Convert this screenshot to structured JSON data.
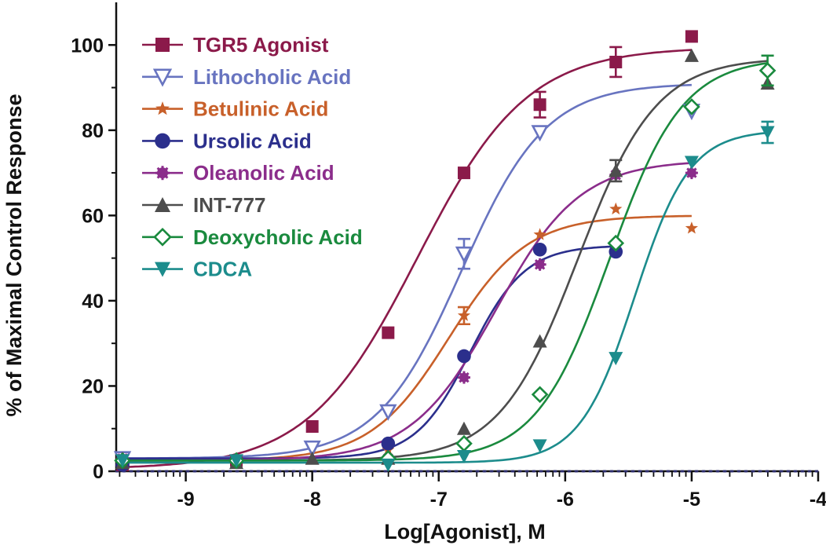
{
  "chart_data": {
    "type": "scatter",
    "xlabel": "Log[Agonist], M",
    "ylabel": "% of Maximal Control Response",
    "xlim": [
      -9.55,
      -4
    ],
    "ylim": [
      0,
      110
    ],
    "xticks": [
      -9,
      -8,
      -7,
      -6,
      -5,
      -4
    ],
    "xtick_labels": [
      "-9",
      "-8",
      "-7",
      "-6",
      "-5",
      "-4"
    ],
    "yticks": [
      0,
      20,
      40,
      60,
      80,
      100
    ],
    "ytick_labels": [
      "0",
      "20",
      "40",
      "60",
      "80",
      "100"
    ],
    "baseline": 0,
    "grid": false,
    "legend_position": "top-left",
    "series": [
      {
        "name": "TGR5 Agonist",
        "color": "#8b1a4a",
        "marker": "square",
        "x": [
          -9.5,
          -8.6,
          -8.0,
          -7.4,
          -6.8,
          -6.2,
          -5.6,
          -5.0
        ],
        "y": [
          1.5,
          2.5,
          10.5,
          32.5,
          70,
          86,
          96,
          102
        ],
        "err": [
          0,
          0,
          0,
          0,
          0,
          3,
          3.5,
          0
        ],
        "fit": {
          "bottom": 0.5,
          "top": 99.5,
          "logec50": -7.17,
          "hill": 1.0,
          "xmin": -9.5,
          "xmax": -5.0
        }
      },
      {
        "name": "Lithocholic Acid",
        "color": "#6874c0",
        "marker": "triangle-down-open",
        "x": [
          -9.5,
          -8.0,
          -7.4,
          -6.8,
          -6.2,
          -5.0
        ],
        "y": [
          3,
          5.5,
          14,
          51,
          79.5,
          84.5
        ],
        "err": [
          0,
          0,
          0,
          3.5,
          0,
          0
        ],
        "fit": {
          "bottom": 3,
          "top": 91,
          "logec50": -6.82,
          "hill": 1.3,
          "xmin": -9.5,
          "xmax": -5.0
        }
      },
      {
        "name": "Betulinic Acid",
        "color": "#c8602a",
        "marker": "star",
        "x": [
          -9.5,
          -8.6,
          -7.4,
          -6.8,
          -6.2,
          -5.6,
          -5.0
        ],
        "y": [
          2.5,
          2.5,
          5,
          36.5,
          55.5,
          61.5,
          57
        ],
        "err": [
          0,
          0,
          0,
          2,
          0,
          0,
          0
        ],
        "fit": {
          "bottom": 2.5,
          "top": 60,
          "logec50": -6.92,
          "hill": 1.4,
          "xmin": -9.5,
          "xmax": -5.0
        }
      },
      {
        "name": "Ursolic Acid",
        "color": "#2b2f8c",
        "marker": "circle",
        "x": [
          -9.5,
          -7.4,
          -6.8,
          -6.2,
          -5.6
        ],
        "y": [
          1.5,
          6.5,
          27,
          52,
          51.5
        ],
        "err": [
          0,
          0,
          0,
          0,
          0
        ],
        "fit": {
          "bottom": 3,
          "top": 53,
          "logec50": -6.75,
          "hill": 2.0,
          "xmin": -9.5,
          "xmax": -5.6
        }
      },
      {
        "name": "Oleanolic Acid",
        "color": "#8b2d8b",
        "marker": "asterisk",
        "x": [
          -9.5,
          -7.4,
          -6.8,
          -6.2,
          -5.6,
          -5.0
        ],
        "y": [
          3,
          3,
          22,
          48.5,
          69.5,
          70
        ],
        "err": [
          0,
          0,
          0,
          0,
          0,
          0
        ],
        "fit": {
          "bottom": 2.5,
          "top": 73,
          "logec50": -6.55,
          "hill": 1.3,
          "xmin": -9.5,
          "xmax": -5.0
        }
      },
      {
        "name": "INT-777",
        "color": "#4d4d4d",
        "marker": "triangle",
        "x": [
          -9.5,
          -8.6,
          -8.0,
          -7.4,
          -6.8,
          -6.2,
          -5.6,
          -5.0,
          -4.4
        ],
        "y": [
          2,
          2,
          3,
          3,
          10,
          30.5,
          70.5,
          97.5,
          91
        ],
        "err": [
          0,
          0,
          0,
          0,
          0,
          0,
          2.5,
          0,
          0
        ],
        "fit": {
          "bottom": 2.5,
          "top": 97,
          "logec50": -5.9,
          "hill": 1.4,
          "xmin": -9.5,
          "xmax": -4.4
        }
      },
      {
        "name": "Deoxycholic Acid",
        "color": "#1a8a3e",
        "marker": "diamond-open",
        "x": [
          -9.5,
          -8.6,
          -7.4,
          -6.8,
          -6.2,
          -5.6,
          -5.0,
          -4.4
        ],
        "y": [
          2.5,
          2.5,
          3,
          6.5,
          18,
          53.5,
          85.5,
          94
        ],
        "err": [
          0,
          0,
          0,
          0,
          0,
          0,
          0,
          3.5
        ],
        "fit": {
          "bottom": 2.5,
          "top": 97,
          "logec50": -5.65,
          "hill": 1.5,
          "xmin": -9.5,
          "xmax": -4.4
        }
      },
      {
        "name": "CDCA",
        "color": "#1c8c8c",
        "marker": "triangle-down",
        "x": [
          -9.5,
          -8.6,
          -7.4,
          -6.8,
          -6.2,
          -5.6,
          -5.0,
          -4.4
        ],
        "y": [
          2.5,
          2.5,
          1.5,
          3.5,
          6,
          26.5,
          72.5,
          79.5
        ],
        "err": [
          0,
          0,
          0,
          0,
          0,
          0,
          0,
          2.5
        ],
        "fit": {
          "bottom": 2,
          "top": 80,
          "logec50": -5.45,
          "hill": 2.0,
          "xmin": -9.5,
          "xmax": -4.4
        }
      }
    ]
  }
}
